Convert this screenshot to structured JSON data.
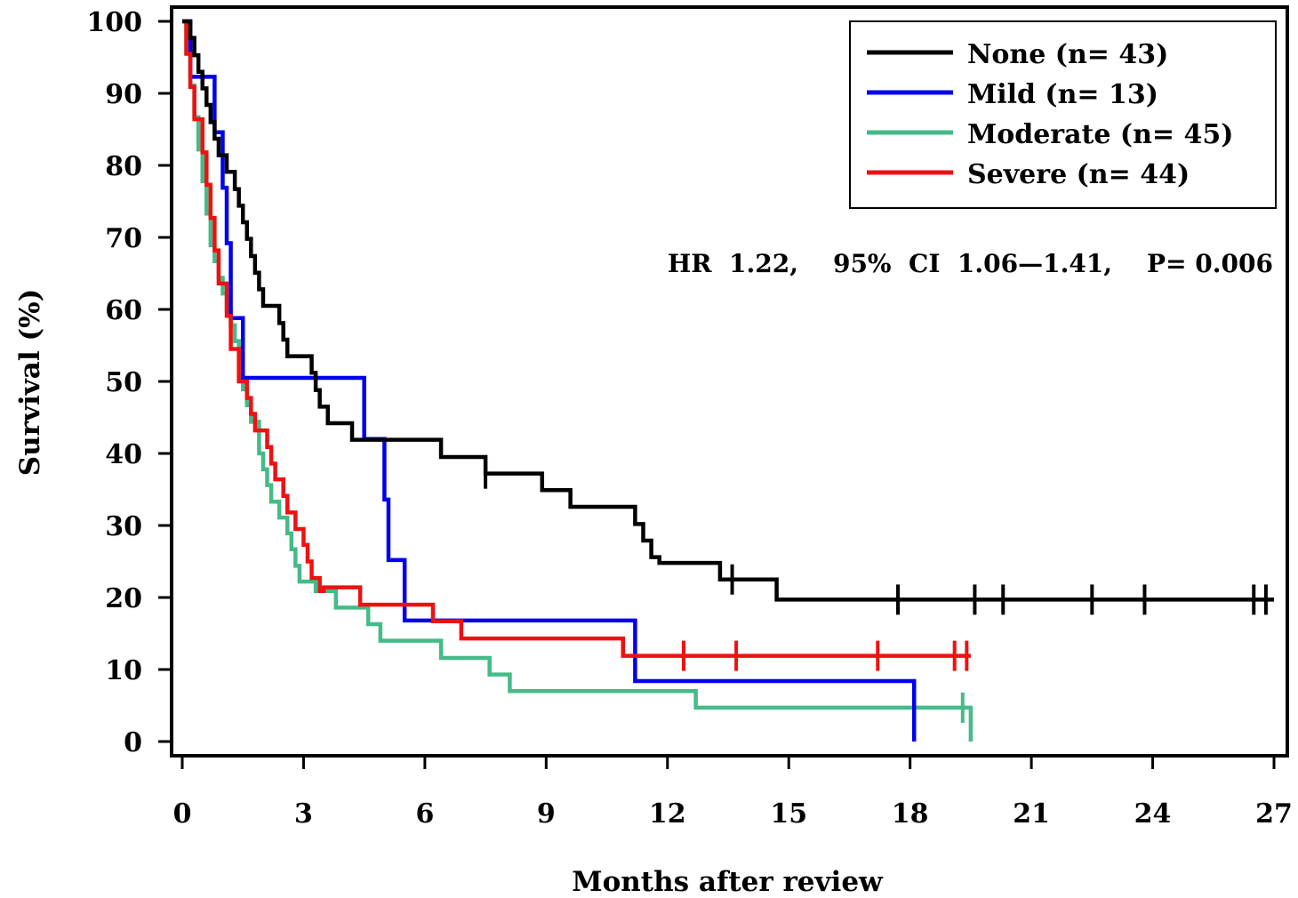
{
  "chart_data": {
    "type": "line",
    "subtype": "kaplan-meier step",
    "title": "",
    "xlabel": "Months  after  review",
    "ylabel": "Survival  (%)",
    "xlim": [
      0,
      27
    ],
    "ylim": [
      0,
      100
    ],
    "x_ticks": [
      0,
      3,
      6,
      9,
      12,
      15,
      18,
      21,
      24,
      27
    ],
    "y_ticks": [
      0,
      10,
      20,
      30,
      40,
      50,
      60,
      70,
      80,
      90,
      100
    ],
    "legend_position": "top-right",
    "annotation": "HR  1.22,    95%  CI  1.06—1.41,    P= 0.006",
    "series": [
      {
        "name": "None  (n= 43)",
        "color": "#000000",
        "steps": [
          [
            0,
            100
          ],
          [
            0.2,
            97.7
          ],
          [
            0.3,
            95.3
          ],
          [
            0.4,
            93
          ],
          [
            0.5,
            90.7
          ],
          [
            0.6,
            88.4
          ],
          [
            0.7,
            86
          ],
          [
            0.8,
            83.7
          ],
          [
            0.9,
            81.4
          ],
          [
            1.1,
            79.1
          ],
          [
            1.3,
            76.7
          ],
          [
            1.4,
            74.4
          ],
          [
            1.5,
            72.1
          ],
          [
            1.6,
            69.8
          ],
          [
            1.7,
            67.4
          ],
          [
            1.8,
            65.1
          ],
          [
            1.9,
            62.8
          ],
          [
            2.0,
            60.5
          ],
          [
            2.4,
            58.1
          ],
          [
            2.5,
            55.8
          ],
          [
            2.6,
            53.5
          ],
          [
            3.2,
            51.2
          ],
          [
            3.3,
            48.8
          ],
          [
            3.4,
            46.5
          ],
          [
            3.6,
            44.2
          ],
          [
            4.2,
            41.9
          ],
          [
            6.4,
            39.5
          ],
          [
            7.5,
            37.2
          ],
          [
            8.9,
            34.9
          ],
          [
            9.6,
            32.6
          ],
          [
            11.2,
            30.2
          ],
          [
            11.4,
            27.9
          ],
          [
            11.6,
            25.6
          ],
          [
            11.8,
            24.8
          ],
          [
            13.3,
            22.5
          ],
          [
            14.7,
            19.7
          ],
          [
            27,
            19.7
          ]
        ],
        "censored": [
          7.5,
          13.6,
          17.7,
          19.6,
          20.3,
          22.5,
          23.8,
          26.5,
          26.8
        ]
      },
      {
        "name": "Mild  (n= 13)",
        "color": "#0000ee",
        "steps": [
          [
            0,
            100
          ],
          [
            0.2,
            92.3
          ],
          [
            0.8,
            84.6
          ],
          [
            1.0,
            76.9
          ],
          [
            1.1,
            69.2
          ],
          [
            1.2,
            58.8
          ],
          [
            1.5,
            50.5
          ],
          [
            4.5,
            42.0
          ],
          [
            5.0,
            33.6
          ],
          [
            5.1,
            25.2
          ],
          [
            5.5,
            16.8
          ],
          [
            11.2,
            8.4
          ],
          [
            18.1,
            0
          ]
        ],
        "censored": []
      },
      {
        "name": "Moderate  (n= 45)",
        "color": "#44bb88",
        "steps": [
          [
            0,
            100
          ],
          [
            0.1,
            95.6
          ],
          [
            0.2,
            91.1
          ],
          [
            0.3,
            86.7
          ],
          [
            0.4,
            82.2
          ],
          [
            0.5,
            77.8
          ],
          [
            0.6,
            73.3
          ],
          [
            0.7,
            68.9
          ],
          [
            0.8,
            66.7
          ],
          [
            0.9,
            64.4
          ],
          [
            1.0,
            62.2
          ],
          [
            1.1,
            60
          ],
          [
            1.2,
            57.8
          ],
          [
            1.3,
            55.6
          ],
          [
            1.4,
            53.3
          ],
          [
            1.5,
            48.9
          ],
          [
            1.6,
            46.7
          ],
          [
            1.7,
            44.4
          ],
          [
            1.9,
            40
          ],
          [
            2.0,
            37.8
          ],
          [
            2.1,
            35.6
          ],
          [
            2.2,
            33.3
          ],
          [
            2.4,
            31.1
          ],
          [
            2.6,
            28.9
          ],
          [
            2.7,
            26.7
          ],
          [
            2.8,
            24.4
          ],
          [
            2.9,
            22.2
          ],
          [
            3.3,
            20.9
          ],
          [
            3.8,
            18.6
          ],
          [
            4.6,
            16.3
          ],
          [
            4.9,
            14
          ],
          [
            6.4,
            11.6
          ],
          [
            7.6,
            9.3
          ],
          [
            8.1,
            7.0
          ],
          [
            12.7,
            4.7
          ],
          [
            19.5,
            0
          ]
        ],
        "censored": [
          19.3
        ]
      },
      {
        "name": "Severe  (n= 44)",
        "color": "#ee1111",
        "steps": [
          [
            0,
            100
          ],
          [
            0.1,
            95.5
          ],
          [
            0.2,
            90.9
          ],
          [
            0.3,
            86.4
          ],
          [
            0.5,
            81.8
          ],
          [
            0.6,
            77.3
          ],
          [
            0.7,
            72.7
          ],
          [
            0.8,
            68.2
          ],
          [
            0.9,
            63.6
          ],
          [
            1.1,
            59.1
          ],
          [
            1.2,
            54.5
          ],
          [
            1.4,
            50
          ],
          [
            1.6,
            47.7
          ],
          [
            1.7,
            45.5
          ],
          [
            1.8,
            43.2
          ],
          [
            2.1,
            40.9
          ],
          [
            2.2,
            38.6
          ],
          [
            2.3,
            36.4
          ],
          [
            2.5,
            34.1
          ],
          [
            2.6,
            31.8
          ],
          [
            2.8,
            29.5
          ],
          [
            3.0,
            27.3
          ],
          [
            3.1,
            25
          ],
          [
            3.2,
            22.7
          ],
          [
            3.4,
            20.9
          ],
          [
            3.5,
            21.4
          ],
          [
            4.4,
            19.0
          ],
          [
            6.2,
            16.7
          ],
          [
            6.9,
            14.3
          ],
          [
            10.9,
            11.9
          ],
          [
            19.5,
            11.9
          ]
        ],
        "censored": [
          12.4,
          13.7,
          17.2,
          19.1,
          19.4
        ]
      }
    ]
  }
}
